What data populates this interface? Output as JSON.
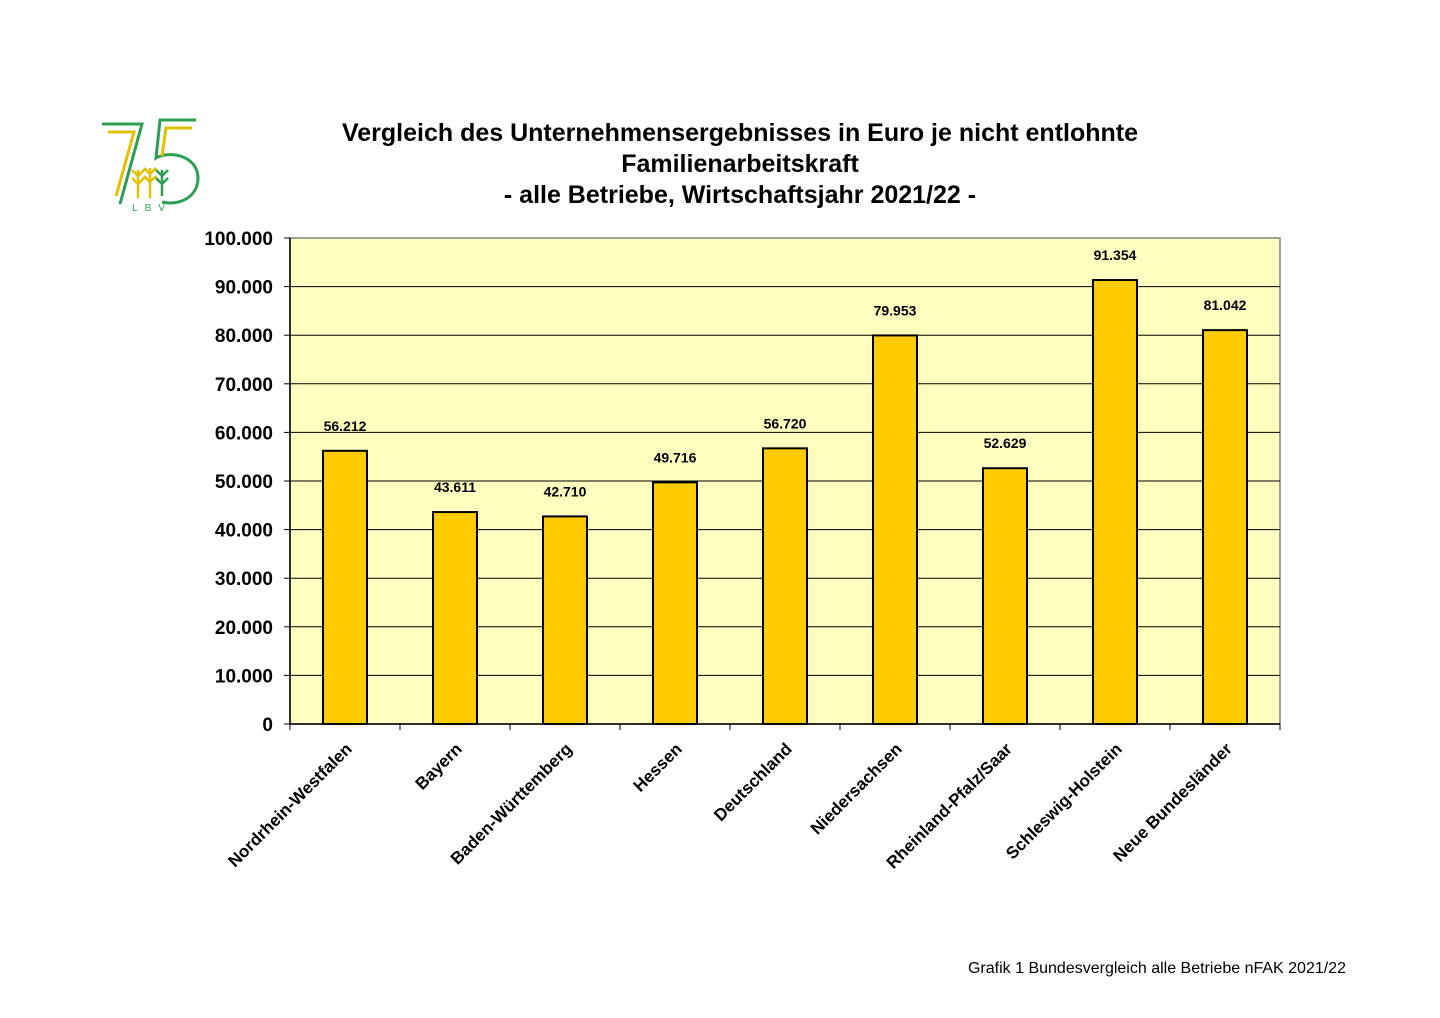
{
  "title": {
    "line1": "Vergleich des Unternehmensergebnisses in Euro je nicht entlohnte",
    "line2": "Familienarbeitskraft",
    "line3": "- alle Betriebe, Wirtschaftsjahr 2021/22 -"
  },
  "logo": {
    "text": "75",
    "sub": "LBV"
  },
  "footnote": "Grafik 1 Bundesvergleich alle Betriebe nFAK 2021/22",
  "colors": {
    "plot_bg": "#FFFFC0",
    "bar_fill": "#FFCC00",
    "bar_stroke": "#000000",
    "grid": "#000000",
    "logo_green": "#2E9E55",
    "logo_yellow": "#E2C100"
  },
  "chart_data": {
    "type": "bar",
    "categories": [
      "Nordrhein-Westfalen",
      "Bayern",
      "Baden-Württemberg",
      "Hessen",
      "Deutschland",
      "Niedersachsen",
      "Rheinland-Pfalz/Saar",
      "Schleswig-Holstein",
      "Neue Bundesländer"
    ],
    "values": [
      56212,
      43611,
      42710,
      49716,
      56720,
      79953,
      52629,
      91354,
      81042
    ],
    "value_labels": [
      "56.212",
      "43.611",
      "42.710",
      "49.716",
      "56.720",
      "79.953",
      "52.629",
      "91.354",
      "81.042"
    ],
    "y_ticks": [
      0,
      10000,
      20000,
      30000,
      40000,
      50000,
      60000,
      70000,
      80000,
      90000,
      100000
    ],
    "y_tick_labels": [
      "0",
      "10.000",
      "20.000",
      "30.000",
      "40.000",
      "50.000",
      "60.000",
      "70.000",
      "80.000",
      "90.000",
      "100.000"
    ],
    "ylim": [
      0,
      100000
    ],
    "grid": true,
    "legend": "none"
  }
}
